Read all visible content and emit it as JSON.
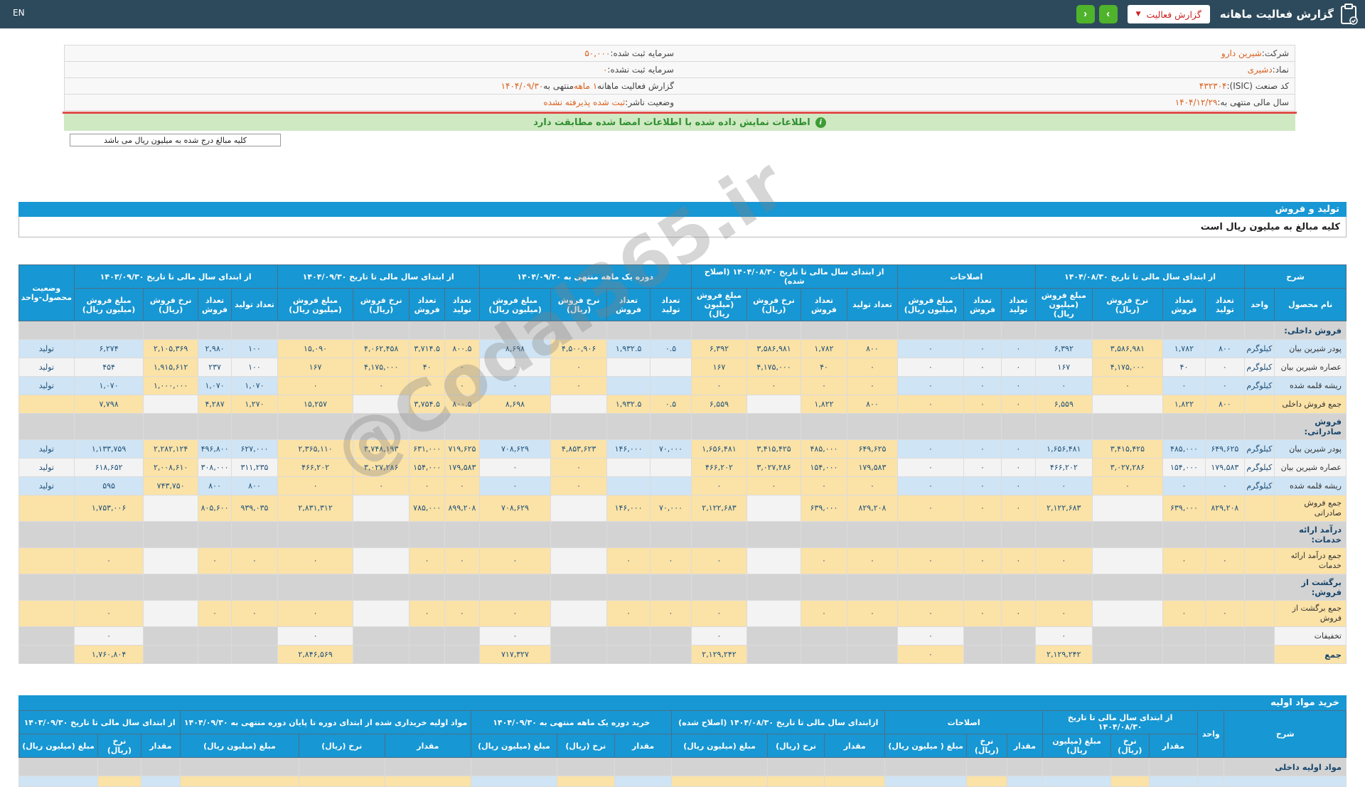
{
  "colors": {
    "topbar": "#2d4a5c",
    "headblue": "#1797d3",
    "rowblue": "#cfe4f4",
    "rowwhite": "#f3f3f3",
    "rowyellow": "#fbe2a6",
    "rowgray": "#d3d3d3",
    "numcol": "#21527a",
    "orange": "#d9611c",
    "greenbtn": "#4fb32b",
    "redacc": "#d32f2f",
    "greenbarbg": "#cfe9c3",
    "greenbartx": "#2f8f2f",
    "redline": "#e24c4c"
  },
  "topbar": {
    "title": "گزارش فعالیت ماهانه",
    "report_type_button": "گزارش فعالیت",
    "caret": "▼",
    "nav_forward": "›",
    "nav_back": "‹",
    "lang_link": "EN",
    "clipboard_icon": "clipboard-icon"
  },
  "info": {
    "rows": [
      {
        "right": [
          {
            "t": "شرکت: ",
            "o": 0
          },
          {
            "t": "شیرین دارو",
            "o": 1
          }
        ],
        "left": [
          {
            "t": "سرمایه ثبت شده: ",
            "o": 0
          },
          {
            "t": "۵۰,۰۰۰",
            "o": 1
          }
        ]
      },
      {
        "right": [
          {
            "t": "نماد: ",
            "o": 0
          },
          {
            "t": "دشیری",
            "o": 1
          }
        ],
        "left": [
          {
            "t": "سرمایه ثبت نشده: ",
            "o": 0
          },
          {
            "t": "۰",
            "o": 1
          }
        ]
      },
      {
        "right": [
          {
            "t": "کد صنعت (ISIC): ",
            "o": 0
          },
          {
            "t": "۴۳۲۳۰۴",
            "o": 1
          }
        ],
        "left": [
          {
            "t": "گزارش فعالیت ماهانه ",
            "o": 0
          },
          {
            "t": "۱ ماهه",
            "o": 1
          },
          {
            "t": " منتهی به ",
            "o": 0
          },
          {
            "t": "۱۴۰۴/۰۹/۳۰",
            "o": 1
          }
        ]
      },
      {
        "right": [
          {
            "t": "سال مالی منتهی به: ",
            "o": 0
          },
          {
            "t": "۱۴۰۴/۱۲/۲۹",
            "o": 1
          }
        ],
        "left": [
          {
            "t": "وضعیت ناشر: ",
            "o": 0
          },
          {
            "t": "ثبت شده پذیرفته نشده",
            "o": 1
          }
        ]
      }
    ]
  },
  "banner": {
    "text": "اطلاعات نمایش داده شده با اطلاعات امضا شده مطابقت دارد"
  },
  "amounts_note_button": "کلیه مبالغ درج شده به میلیون ریال می باشد",
  "watermark": "@Codal365.ir",
  "table1": {
    "title": "تولید و فروش",
    "note": "کلیه مبالغ به میلیون ریال است",
    "desc_header": "شرح",
    "name_header": "نام محصول",
    "unit_header": "واحد",
    "status_header": "وضعیت محصول-واحد",
    "groups": [
      {
        "label": "از ابتدای سال مالی تا تاریخ ۱۴۰۴/۰۸/۳۰",
        "cols": [
          "تعداد تولید",
          "تعداد فروش",
          "نرخ فروش (ریال)",
          "مبلغ فروش (میلیون ریال)"
        ]
      },
      {
        "label": "اصلاحات",
        "cols": [
          "تعداد تولید",
          "تعداد فروش",
          "مبلغ فروش (میلیون ریال)"
        ]
      },
      {
        "label": "از ابتدای سال مالی تا تاریخ ۱۴۰۴/۰۸/۳۰ (اصلاح شده)",
        "cols": [
          "تعداد تولید",
          "تعداد فروش",
          "نرخ فروش (ریال)",
          "مبلغ فروش (میلیون ریال)"
        ]
      },
      {
        "label": "دوره یک ماهه منتهی به ۱۴۰۴/۰۹/۳۰",
        "cols": [
          "تعداد تولید",
          "تعداد فروش",
          "نرخ فروش (ریال)",
          "مبلغ فروش (میلیون ریال)"
        ]
      },
      {
        "label": "از ابتدای سال مالی تا تاریخ ۱۴۰۴/۰۹/۳۰",
        "cols": [
          "تعداد تولید",
          "تعداد فروش",
          "نرخ فروش (ریال)",
          "مبلغ فروش (میلیون ریال)"
        ]
      },
      {
        "label": "از ابتدای سال مالی تا تاریخ ۱۴۰۳/۰۹/۳۰",
        "cols": [
          "تعداد تولید",
          "تعداد فروش",
          "نرخ فروش (ریال)",
          "مبلغ فروش (میلیون ریال)"
        ]
      }
    ],
    "rows": [
      {
        "type": "section",
        "name": "فروش داخلی:"
      },
      {
        "type": "data",
        "name": "پودر شیرین بیان",
        "unit": "کیلوگرم",
        "status": "تولید",
        "g1": [
          "۸۰۰",
          "۱,۷۸۲",
          "۳,۵۸۶,۹۸۱",
          "۶,۳۹۲"
        ],
        "adj": [
          "۰",
          "۰",
          "۰"
        ],
        "g3": [
          "۸۰۰",
          "۱,۷۸۲",
          "۳,۵۸۶,۹۸۱",
          "۶,۳۹۲"
        ],
        "g4": [
          "۰.۵",
          "۱,۹۳۲.۵",
          "۴,۵۰۰,۹۰۶",
          "۸,۶۹۸"
        ],
        "g5": [
          "۸۰۰.۵",
          "۳,۷۱۴.۵",
          "۴,۰۶۲,۴۵۸",
          "۱۵,۰۹۰"
        ],
        "g6": [
          "۱۰۰",
          "۲,۹۸۰",
          "۲,۱۰۵,۳۶۹",
          "۶,۲۷۴"
        ]
      },
      {
        "type": "data",
        "name": "عصاره شیرین بیان",
        "unit": "کیلوگرم",
        "status": "تولید",
        "g1": [
          "۰",
          "۴۰",
          "۴,۱۷۵,۰۰۰",
          "۱۶۷"
        ],
        "adj": [
          "۰",
          "۰",
          "۰"
        ],
        "g3": [
          "۰",
          "۴۰",
          "۴,۱۷۵,۰۰۰",
          "۱۶۷"
        ],
        "g4": [
          "",
          "",
          "۰",
          "۰"
        ],
        "g5": [
          "۰",
          "۴۰",
          "۴,۱۷۵,۰۰۰",
          "۱۶۷"
        ],
        "g6": [
          "۱۰۰",
          "۲۳۷",
          "۱,۹۱۵,۶۱۲",
          "۴۵۴"
        ]
      },
      {
        "type": "data",
        "name": "ریشه قلمه شده",
        "unit": "کیلوگرم",
        "status": "تولید",
        "g1": [
          "۰",
          "۰",
          "۰",
          "۰"
        ],
        "adj": [
          "۰",
          "۰",
          "۰"
        ],
        "g3": [
          "۰",
          "۰",
          "۰",
          "۰"
        ],
        "g4": [
          "",
          "",
          "۰",
          "۰"
        ],
        "g5": [
          "۰",
          "۰",
          "۰",
          "۰"
        ],
        "g6": [
          "۱,۰۷۰",
          "۱,۰۷۰",
          "۱,۰۰۰,۰۰۰",
          "۱,۰۷۰"
        ]
      },
      {
        "type": "sum",
        "name": "جمع فروش داخلی",
        "g1": [
          "۸۰۰",
          "۱,۸۲۲",
          "",
          "۶,۵۵۹"
        ],
        "adj": [
          "۰",
          "۰",
          "۰"
        ],
        "g3": [
          "۸۰۰",
          "۱,۸۲۲",
          "",
          "۶,۵۵۹"
        ],
        "g4": [
          "۰.۵",
          "۱,۹۳۲.۵",
          "",
          "۸,۶۹۸"
        ],
        "g5": [
          "۸۰۰.۵",
          "۳,۷۵۴.۵",
          "",
          "۱۵,۲۵۷"
        ],
        "g6": [
          "۱,۲۷۰",
          "۴,۲۸۷",
          "",
          "۷,۷۹۸"
        ]
      },
      {
        "type": "section",
        "name": "فروش صادراتی:"
      },
      {
        "type": "data",
        "name": "پودر شیرین بیان",
        "unit": "کیلوگرم",
        "status": "تولید",
        "g1": [
          "۶۴۹,۶۲۵",
          "۴۸۵,۰۰۰",
          "۳,۴۱۵,۴۲۵",
          "۱,۶۵۶,۴۸۱"
        ],
        "adj": [
          "۰",
          "۰",
          "۰"
        ],
        "g3": [
          "۶۴۹,۶۲۵",
          "۴۸۵,۰۰۰",
          "۳,۴۱۵,۴۲۵",
          "۱,۶۵۶,۴۸۱"
        ],
        "g4": [
          "۷۰,۰۰۰",
          "۱۴۶,۰۰۰",
          "۴,۸۵۳,۶۲۳",
          "۷۰۸,۶۲۹"
        ],
        "g5": [
          "۷۱۹,۶۲۵",
          "۶۳۱,۰۰۰",
          "۳,۷۴۸,۱۹۳",
          "۲,۳۶۵,۱۱۰"
        ],
        "g6": [
          "۶۲۷,۰۰۰",
          "۴۹۶,۸۰۰",
          "۲,۲۸۲,۱۲۴",
          "۱,۱۳۳,۷۵۹"
        ]
      },
      {
        "type": "data",
        "name": "عصاره شیرین بیان",
        "unit": "کیلوگرم",
        "status": "تولید",
        "g1": [
          "۱۷۹,۵۸۳",
          "۱۵۴,۰۰۰",
          "۳,۰۲۷,۲۸۶",
          "۴۶۶,۲۰۲"
        ],
        "adj": [
          "۰",
          "۰",
          "۰"
        ],
        "g3": [
          "۱۷۹,۵۸۳",
          "۱۵۴,۰۰۰",
          "۳,۰۲۷,۲۸۶",
          "۴۶۶,۲۰۲"
        ],
        "g4": [
          "",
          "",
          "۰",
          "۰"
        ],
        "g5": [
          "۱۷۹,۵۸۳",
          "۱۵۴,۰۰۰",
          "۳,۰۲۷,۲۸۶",
          "۴۶۶,۲۰۲"
        ],
        "g6": [
          "۳۱۱,۲۳۵",
          "۳۰۸,۰۰۰",
          "۲,۰۰۸,۶۱۰",
          "۶۱۸,۶۵۲"
        ]
      },
      {
        "type": "data",
        "name": "ریشه قلمه شده",
        "unit": "کیلوگرم",
        "status": "تولید",
        "g1": [
          "۰",
          "۰",
          "۰",
          "۰"
        ],
        "adj": [
          "۰",
          "۰",
          "۰"
        ],
        "g3": [
          "۰",
          "۰",
          "۰",
          "۰"
        ],
        "g4": [
          "",
          "",
          "۰",
          "۰"
        ],
        "g5": [
          "۰",
          "۰",
          "۰",
          "۰"
        ],
        "g6": [
          "۸۰۰",
          "۸۰۰",
          "۷۴۳,۷۵۰",
          "۵۹۵"
        ]
      },
      {
        "type": "sum",
        "name": "جمع فروش صادراتی",
        "g1": [
          "۸۲۹,۲۰۸",
          "۶۳۹,۰۰۰",
          "",
          "۲,۱۲۲,۶۸۳"
        ],
        "adj": [
          "۰",
          "۰",
          "۰"
        ],
        "g3": [
          "۸۲۹,۲۰۸",
          "۶۳۹,۰۰۰",
          "",
          "۲,۱۲۲,۶۸۳"
        ],
        "g4": [
          "۷۰,۰۰۰",
          "۱۴۶,۰۰۰",
          "",
          "۷۰۸,۶۲۹"
        ],
        "g5": [
          "۸۹۹,۲۰۸",
          "۷۸۵,۰۰۰",
          "",
          "۲,۸۳۱,۳۱۲"
        ],
        "g6": [
          "۹۳۹,۰۳۵",
          "۸۰۵,۶۰۰",
          "",
          "۱,۷۵۳,۰۰۶"
        ]
      },
      {
        "type": "section",
        "name": "درآمد ارائه خدمات:"
      },
      {
        "type": "sum",
        "name": "جمع درآمد ارائه خدمات",
        "g1": [
          "۰",
          "۰",
          "",
          "۰"
        ],
        "adj": [
          "۰",
          "۰",
          "۰"
        ],
        "g3": [
          "۰",
          "۰",
          "",
          "۰"
        ],
        "g4": [
          "۰",
          "۰",
          "",
          "۰"
        ],
        "g5": [
          "۰",
          "۰",
          "",
          "۰"
        ],
        "g6": [
          "۰",
          "۰",
          "",
          "۰"
        ]
      },
      {
        "type": "section",
        "name": "برگشت از فروش:"
      },
      {
        "type": "sum",
        "name": "جمع برگشت از فروش",
        "g1": [
          "۰",
          "۰",
          "",
          "۰"
        ],
        "adj": [
          "۰",
          "۰",
          "۰"
        ],
        "g3": [
          "۰",
          "۰",
          "",
          "۰"
        ],
        "g4": [
          "۰",
          "۰",
          "",
          "۰"
        ],
        "g5": [
          "۰",
          "۰",
          "",
          "۰"
        ],
        "g6": [
          "۰",
          "۰",
          "",
          "۰"
        ]
      },
      {
        "type": "discount",
        "name": "تخفیفات",
        "g1": [
          "",
          "",
          "",
          "۰"
        ],
        "adj": [
          "",
          "",
          "۰"
        ],
        "g3": [
          "",
          "",
          "",
          "۰"
        ],
        "g4": [
          "",
          "",
          "",
          "۰"
        ],
        "g5": [
          "",
          "",
          "",
          "۰"
        ],
        "g6": [
          "",
          "",
          "",
          "۰"
        ]
      },
      {
        "type": "total",
        "name": "جمع",
        "g1": [
          "",
          "",
          "",
          "۲,۱۲۹,۲۴۲"
        ],
        "adj": [
          "",
          "",
          "۰"
        ],
        "g3": [
          "",
          "",
          "",
          "۲,۱۲۹,۲۴۲"
        ],
        "g4": [
          "",
          "",
          "",
          "۷۱۷,۳۲۷"
        ],
        "g5": [
          "",
          "",
          "",
          "۲,۸۴۶,۵۶۹"
        ],
        "g6": [
          "",
          "",
          "",
          "۱,۷۶۰,۸۰۴"
        ]
      }
    ]
  },
  "table2": {
    "title": "خرید مواد اولیه",
    "desc_header": "شرح",
    "unit_header": "واحد",
    "groups": [
      {
        "label": "از ابتدای سال مالی تا تاریخ ۱۴۰۴/۰۸/۳۰",
        "cols": [
          "مقدار",
          "نرخ (ریال)",
          "مبلغ (میلیون ریال)"
        ]
      },
      {
        "label": "اصلاحات",
        "cols": [
          "مقدار",
          "نرخ (ریال)",
          "مبلغ ( میلیون ریال)"
        ]
      },
      {
        "label": "ازابتدای سال مالی تا تاریخ ۱۴۰۴/۰۸/۳۰ (اصلاح شده)",
        "cols": [
          "مقدار",
          "نرخ (ریال)",
          "مبلغ (میلیون ریال)"
        ]
      },
      {
        "label": "خرید دوره یک ماهه منتهی به ۱۴۰۴/۰۹/۳۰",
        "cols": [
          "مقدار",
          "نرخ (ریال)",
          "مبلغ (میلیون ریال)"
        ]
      },
      {
        "label": "مواد اولیه خریداری شده از ابتدای دوره تا پایان دوره منتهی به ۱۴۰۴/۰۹/۳۰",
        "cols": [
          "مقدار",
          "نرخ (ریال)",
          "مبلغ (میلیون ریال)"
        ]
      },
      {
        "label": "از ابتدای سال مالی تا تاریخ ۱۴۰۳/۰۹/۳۰",
        "cols": [
          "مقدار",
          "نرخ (ریال)",
          "مبلغ (میلیون ریال)"
        ]
      }
    ],
    "rows": [
      {
        "type": "section",
        "name": "مواد اولیه داخلی"
      }
    ]
  }
}
